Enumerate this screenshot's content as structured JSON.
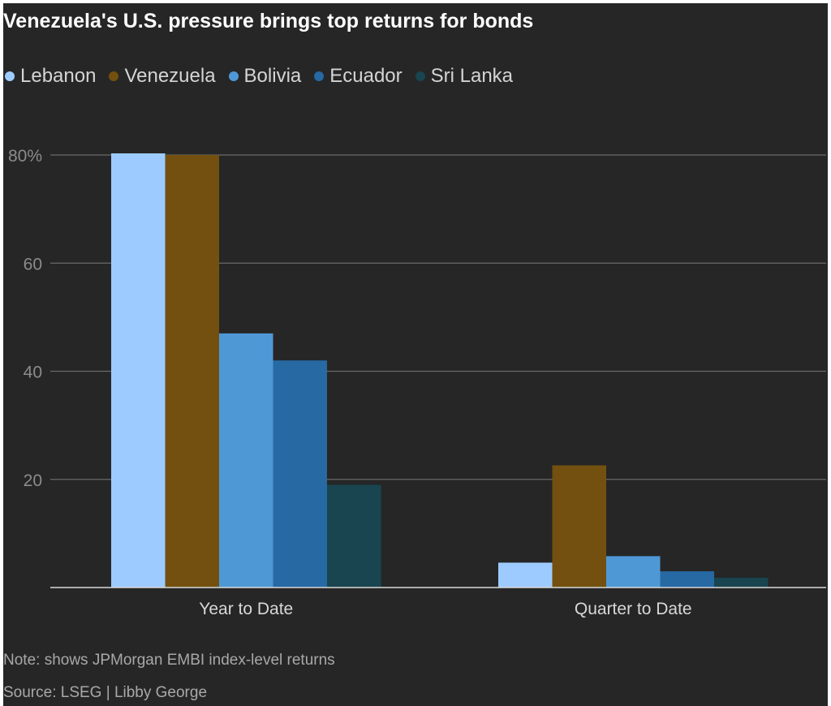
{
  "title": "Venezuela's U.S. pressure brings top returns for bonds",
  "note": "Note: shows JPMorgan EMBI index-level returns",
  "source": "Source: LSEG | Libby George",
  "colors": {
    "background": "#262626",
    "gridline": "#6a6a6a",
    "axis_line": "#d8d8d8",
    "tick_text": "#8c8c8c",
    "category_text": "#d8d8d8"
  },
  "chart_data": {
    "type": "bar",
    "title": "Venezuela's U.S. pressure brings top returns for bonds",
    "xlabel": "",
    "ylabel": "",
    "categories": [
      "Year to Date",
      "Quarter to Date"
    ],
    "ylim": [
      0,
      80
    ],
    "yticks": [
      20,
      40,
      60,
      80
    ],
    "ytick_labels": [
      "20",
      "40",
      "60",
      "80%"
    ],
    "grid": true,
    "legend_position": "top-left",
    "series": [
      {
        "name": "Lebanon",
        "color": "#9ecbff",
        "values": [
          80.3,
          4.6
        ]
      },
      {
        "name": "Venezuela",
        "color": "#73500f",
        "values": [
          80.0,
          22.6
        ]
      },
      {
        "name": "Bolivia",
        "color": "#4f98d6",
        "values": [
          47.0,
          5.8
        ]
      },
      {
        "name": "Ecuador",
        "color": "#2669a3",
        "values": [
          42.0,
          3.0
        ]
      },
      {
        "name": "Sri Lanka",
        "color": "#18454f",
        "values": [
          19.0,
          1.8
        ]
      }
    ]
  }
}
